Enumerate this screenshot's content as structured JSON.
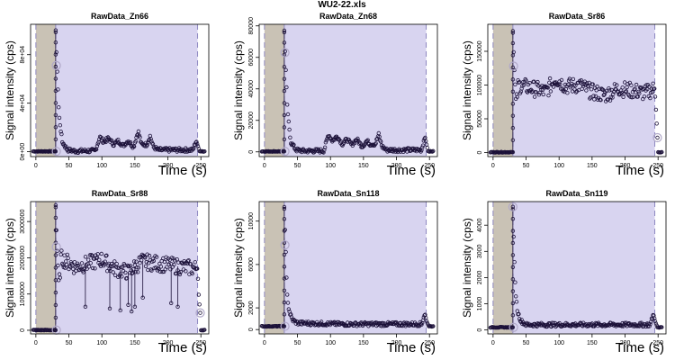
{
  "main_title": "WU2-22.xls",
  "colors": {
    "background_band": "#c9c2b5",
    "signal_band": "#d8d4f0",
    "points": "#1b1038",
    "highlight": "#b0a8c8",
    "boundary_line": "#8e88c0"
  },
  "chart_data": [
    {
      "type": "scatter",
      "title": "RawData_Zn66",
      "xlabel": "Time (s)",
      "ylabel": "Signal intensity (cps)",
      "xlim": [
        -8,
        262
      ],
      "ylim": [
        -4000,
        105000
      ],
      "xticks": [
        0,
        50,
        100,
        150,
        200,
        250
      ],
      "xtick_labels": [
        "0",
        "50",
        "100",
        "150",
        "200",
        "250"
      ],
      "yticks": [
        0,
        40000,
        80000
      ],
      "ytick_labels": [
        "0e+00",
        "4e+04",
        "8e+04"
      ],
      "background_window": [
        0,
        30
      ],
      "signal_window": [
        30,
        245
      ],
      "baseline": 300,
      "peak": {
        "x": 30,
        "y": 100000
      },
      "highlight_points": [
        [
          31,
          71000
        ],
        [
          31,
          300
        ]
      ],
      "profile": [
        [
          0,
          300
        ],
        [
          29,
          300
        ],
        [
          30,
          100000
        ],
        [
          32,
          70000
        ],
        [
          35,
          30000
        ],
        [
          40,
          8000
        ],
        [
          48,
          1500
        ],
        [
          60,
          600
        ],
        [
          90,
          800
        ],
        [
          97,
          12000
        ],
        [
          103,
          8000
        ],
        [
          110,
          11000
        ],
        [
          118,
          6000
        ],
        [
          125,
          9000
        ],
        [
          132,
          5000
        ],
        [
          140,
          9000
        ],
        [
          148,
          4000
        ],
        [
          155,
          17000
        ],
        [
          160,
          6000
        ],
        [
          168,
          6000
        ],
        [
          173,
          13000
        ],
        [
          178,
          4000
        ],
        [
          185,
          1500
        ],
        [
          238,
          1500
        ],
        [
          243,
          9000
        ],
        [
          246,
          4000
        ],
        [
          248,
          300
        ],
        [
          256,
          300
        ]
      ]
    },
    {
      "type": "scatter",
      "title": "RawData_Zn68",
      "xlabel": "Time (s)",
      "ylabel": "Signal intensity (cps)",
      "xlim": [
        -8,
        262
      ],
      "ylim": [
        -3000,
        81000
      ],
      "xticks": [
        0,
        50,
        100,
        150,
        200,
        250
      ],
      "xtick_labels": [
        "0",
        "50",
        "100",
        "150",
        "200",
        "250"
      ],
      "yticks": [
        0,
        20000,
        40000,
        60000,
        80000
      ],
      "ytick_labels": [
        "0",
        "20000",
        "40000",
        "60000",
        "80000"
      ],
      "background_window": [
        0,
        30
      ],
      "signal_window": [
        30,
        245
      ],
      "baseline": 300,
      "peak": {
        "x": 30,
        "y": 77000
      },
      "highlight_points": [
        [
          31,
          63000
        ],
        [
          31,
          300
        ]
      ],
      "profile": [
        [
          0,
          300
        ],
        [
          29,
          300
        ],
        [
          30,
          77000
        ],
        [
          32,
          55000
        ],
        [
          35,
          25000
        ],
        [
          40,
          6000
        ],
        [
          48,
          1200
        ],
        [
          60,
          600
        ],
        [
          90,
          700
        ],
        [
          97,
          11000
        ],
        [
          103,
          7000
        ],
        [
          110,
          10000
        ],
        [
          118,
          5000
        ],
        [
          125,
          8000
        ],
        [
          132,
          4500
        ],
        [
          140,
          8000
        ],
        [
          148,
          3500
        ],
        [
          155,
          7000
        ],
        [
          160,
          5000
        ],
        [
          168,
          5000
        ],
        [
          173,
          11000
        ],
        [
          178,
          3500
        ],
        [
          185,
          1200
        ],
        [
          238,
          1200
        ],
        [
          243,
          10000
        ],
        [
          246,
          4000
        ],
        [
          248,
          300
        ],
        [
          256,
          300
        ]
      ]
    },
    {
      "type": "scatter",
      "title": "RawData_Sr86",
      "xlabel": "Time (s)",
      "ylabel": "Signal intensity (cps)",
      "xlim": [
        -8,
        262
      ],
      "ylim": [
        -6000,
        190000
      ],
      "xticks": [
        0,
        50,
        100,
        150,
        200,
        250
      ],
      "xtick_labels": [
        "0",
        "50",
        "100",
        "150",
        "200",
        "250"
      ],
      "yticks": [
        0,
        50000,
        100000,
        150000
      ],
      "ytick_labels": [
        "0",
        "50000",
        "100000",
        "150000"
      ],
      "background_window": [
        0,
        30
      ],
      "signal_window": [
        30,
        245
      ],
      "baseline": 500,
      "peak": {
        "x": 30,
        "y": 180000
      },
      "highlight_points": [
        [
          31,
          128000
        ],
        [
          249,
          22000
        ]
      ],
      "profile": [
        [
          0,
          500
        ],
        [
          29,
          500
        ],
        [
          30,
          180000
        ],
        [
          32,
          128000
        ],
        [
          35,
          70000
        ],
        [
          38,
          100000
        ],
        [
          60,
          95000
        ],
        [
          80,
          90000
        ],
        [
          95,
          110000
        ],
        [
          110,
          98000
        ],
        [
          130,
          100000
        ],
        [
          150,
          90000
        ],
        [
          170,
          85000
        ],
        [
          190,
          95000
        ],
        [
          210,
          92000
        ],
        [
          230,
          88000
        ],
        [
          245,
          95000
        ],
        [
          247,
          60000
        ],
        [
          249,
          22000
        ],
        [
          251,
          500
        ],
        [
          256,
          500
        ]
      ]
    },
    {
      "type": "scatter",
      "title": "RawData_Sr88",
      "xlabel": "Time (s)",
      "ylabel": "Signal intensity (cps)",
      "xlim": [
        -8,
        262
      ],
      "ylim": [
        -100000,
        3550000
      ],
      "xticks": [
        0,
        50,
        100,
        150,
        200,
        250
      ],
      "xtick_labels": [
        "0",
        "50",
        "100",
        "150",
        "200",
        "250"
      ],
      "yticks": [
        0,
        1000000,
        2000000,
        3000000
      ],
      "ytick_labels": [
        "0",
        "1000000",
        "2000000",
        "3000000"
      ],
      "background_window": [
        0,
        30
      ],
      "signal_window": [
        30,
        245
      ],
      "baseline": 5000,
      "peak": {
        "x": 30,
        "y": 3450000
      },
      "highlight_points": [
        [
          31,
          2300000
        ],
        [
          249,
          480000
        ],
        [
          31,
          5000
        ]
      ],
      "profile": [
        [
          0,
          5000
        ],
        [
          29,
          5000
        ],
        [
          30,
          3450000
        ],
        [
          32,
          2300000
        ],
        [
          35,
          1200000
        ],
        [
          38,
          2000000
        ],
        [
          60,
          1750000
        ],
        [
          80,
          1850000
        ],
        [
          100,
          1950000
        ],
        [
          120,
          1700000
        ],
        [
          140,
          1600000
        ],
        [
          160,
          1900000
        ],
        [
          180,
          1850000
        ],
        [
          200,
          1800000
        ],
        [
          220,
          1750000
        ],
        [
          245,
          1700000
        ],
        [
          247,
          900000
        ],
        [
          249,
          480000
        ],
        [
          251,
          5000
        ],
        [
          256,
          5000
        ]
      ],
      "dips": [
        [
          75,
          650000
        ],
        [
          112,
          600000
        ],
        [
          128,
          550000
        ],
        [
          140,
          700000
        ],
        [
          145,
          520000
        ],
        [
          150,
          650000
        ],
        [
          162,
          900000
        ],
        [
          205,
          750000
        ],
        [
          215,
          650000
        ]
      ]
    },
    {
      "type": "scatter",
      "title": "RawData_Sn118",
      "xlabel": "Time (s)",
      "ylabel": "Signal intensity (cps)",
      "xlim": [
        -8,
        262
      ],
      "ylim": [
        -400,
        11800
      ],
      "xticks": [
        0,
        50,
        100,
        150,
        200,
        250
      ],
      "xtick_labels": [
        "0",
        "50",
        "100",
        "150",
        "200",
        "250"
      ],
      "yticks": [
        0,
        2000,
        6000,
        10000
      ],
      "ytick_labels": [
        "0",
        "2000",
        "6000",
        "10000"
      ],
      "background_window": [
        0,
        30
      ],
      "signal_window": [
        30,
        245
      ],
      "baseline": 300,
      "peak": {
        "x": 30,
        "y": 11300
      },
      "highlight_points": [
        [
          31,
          7800
        ],
        [
          31,
          300
        ]
      ],
      "profile": [
        [
          0,
          300
        ],
        [
          29,
          300
        ],
        [
          30,
          11300
        ],
        [
          32,
          7800
        ],
        [
          34,
          3500
        ],
        [
          37,
          1800
        ],
        [
          42,
          900
        ],
        [
          50,
          600
        ],
        [
          120,
          500
        ],
        [
          238,
          500
        ],
        [
          243,
          1500
        ],
        [
          246,
          700
        ],
        [
          249,
          300
        ],
        [
          256,
          300
        ]
      ]
    },
    {
      "type": "scatter",
      "title": "RawData_Sn119",
      "xlabel": "Time (s)",
      "ylabel": "Signal intensity (cps)",
      "xlim": [
        -8,
        262
      ],
      "ylim": [
        -150,
        4900
      ],
      "xticks": [
        0,
        50,
        100,
        150,
        200,
        250
      ],
      "xtick_labels": [
        "0",
        "50",
        "100",
        "150",
        "200",
        "250"
      ],
      "yticks": [
        0,
        1000,
        2000,
        3000,
        4000
      ],
      "ytick_labels": [
        "0",
        "1000",
        "2000",
        "3000",
        "4000"
      ],
      "background_window": [
        0,
        30
      ],
      "signal_window": [
        30,
        245
      ],
      "baseline": 100,
      "peak": {
        "x": 30,
        "y": 4700
      },
      "highlight_points": [
        [
          30,
          4700
        ],
        [
          31,
          100
        ]
      ],
      "profile": [
        [
          0,
          100
        ],
        [
          29,
          100
        ],
        [
          30,
          4700
        ],
        [
          32,
          2800
        ],
        [
          34,
          1400
        ],
        [
          37,
          700
        ],
        [
          42,
          350
        ],
        [
          50,
          200
        ],
        [
          238,
          200
        ],
        [
          243,
          600
        ],
        [
          246,
          300
        ],
        [
          249,
          100
        ],
        [
          256,
          100
        ]
      ]
    }
  ]
}
